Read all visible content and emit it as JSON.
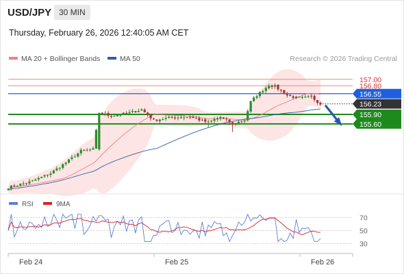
{
  "header": {
    "symbol": "USD/JPY",
    "interval": "30 MIN",
    "datetime": "Thursday, February 26, 2026 12:40:05 AM CET"
  },
  "legend": {
    "ma20": "MA 20 + Bollinger Bands",
    "ma50": "MA 50",
    "credit": "Research © 2026 Trading Central",
    "colors": {
      "ma20": "#f08080",
      "ma50": "#2f5fa8",
      "band": "#fde0e0"
    }
  },
  "rsi_legend": {
    "rsi": "RSI",
    "ma9": "9MA",
    "colors": {
      "rsi": "#5b7fd6",
      "ma9": "#d92020"
    }
  },
  "chart_data": [
    {
      "type": "candlestick",
      "x_ticks": [
        "Feb 24",
        "Feb 25",
        "Feb 26"
      ],
      "ylim": [
        153.4,
        157.45
      ],
      "levels": [
        {
          "label": "157.00",
          "value": 157.0,
          "kind": "resistance-red"
        },
        {
          "label": "156.80",
          "value": 156.8,
          "kind": "resistance-red"
        },
        {
          "label": "156.55",
          "value": 156.55,
          "kind": "pivot-blue"
        },
        {
          "label": "156.23",
          "value": 156.23,
          "kind": "last-price"
        },
        {
          "label": "155.90",
          "value": 155.9,
          "kind": "support-green"
        },
        {
          "label": "155.60",
          "value": 155.6,
          "kind": "support-green"
        }
      ],
      "target_arrow": {
        "from": 156.23,
        "to": 155.9
      },
      "colors": {
        "up": "#2e8b2e",
        "down": "#a83232",
        "blue": "#1d5fe0",
        "green": "#1e8a1e",
        "red": "#e88880"
      }
    },
    {
      "type": "line",
      "title": "RSI",
      "ylim": [
        20,
        80
      ],
      "y_ticks": [
        "70",
        "50",
        "30"
      ]
    }
  ]
}
